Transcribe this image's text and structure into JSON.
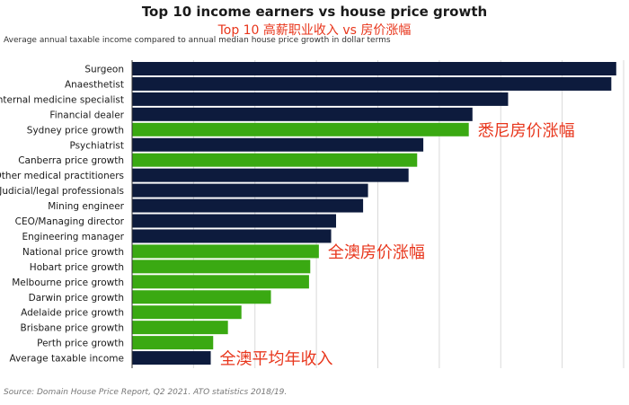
{
  "chart_data": {
    "type": "bar",
    "orientation": "horizontal",
    "title": "Top 10 income earners vs house price growth",
    "subtitle": "Top 10 高薪职业收入 vs 房价涨幅",
    "caption": "Average annual taxable income compared to annual median house price growth in dollar terms",
    "source": "Source: Domain House Price Report, Q2 2021. ATO statistics 2018/19.",
    "xlim": [
      0,
      400000
    ],
    "grid": "vertical",
    "legend": "none",
    "categories": [
      "Surgeon",
      "Anaesthetist",
      "Internal medicine specialist",
      "Financial dealer",
      "Sydney price growth",
      "Psychiatrist",
      "Canberra price growth",
      "Other medical practitioners",
      "Judicial/legal professionals",
      "Mining engineer",
      "CEO/Managing director",
      "Engineering manager",
      "National price growth",
      "Hobart price growth",
      "Melbourne price growth",
      "Darwin price growth",
      "Adelaide price growth",
      "Brisbane price growth",
      "Perth price growth",
      "Average taxable income"
    ],
    "values": [
      394000,
      390000,
      306000,
      277000,
      274000,
      237000,
      232000,
      225000,
      192000,
      188000,
      166000,
      162000,
      152000,
      145000,
      144000,
      113000,
      89000,
      78000,
      66000,
      64000
    ],
    "bar_types": [
      "income",
      "income",
      "income",
      "income",
      "price",
      "income",
      "price",
      "income",
      "income",
      "income",
      "income",
      "income",
      "price",
      "price",
      "price",
      "price",
      "price",
      "price",
      "price",
      "income"
    ],
    "colors": {
      "income": "#0d1b3d",
      "price": "#3aa912",
      "annotation": "#e8361c"
    },
    "annotations": [
      {
        "text": "悉尼房价涨幅",
        "category": "Sydney price growth"
      },
      {
        "text": "全澳房价涨幅",
        "category": "National price growth"
      },
      {
        "text": "全澳平均年收入",
        "category": "Average taxable income"
      }
    ]
  }
}
